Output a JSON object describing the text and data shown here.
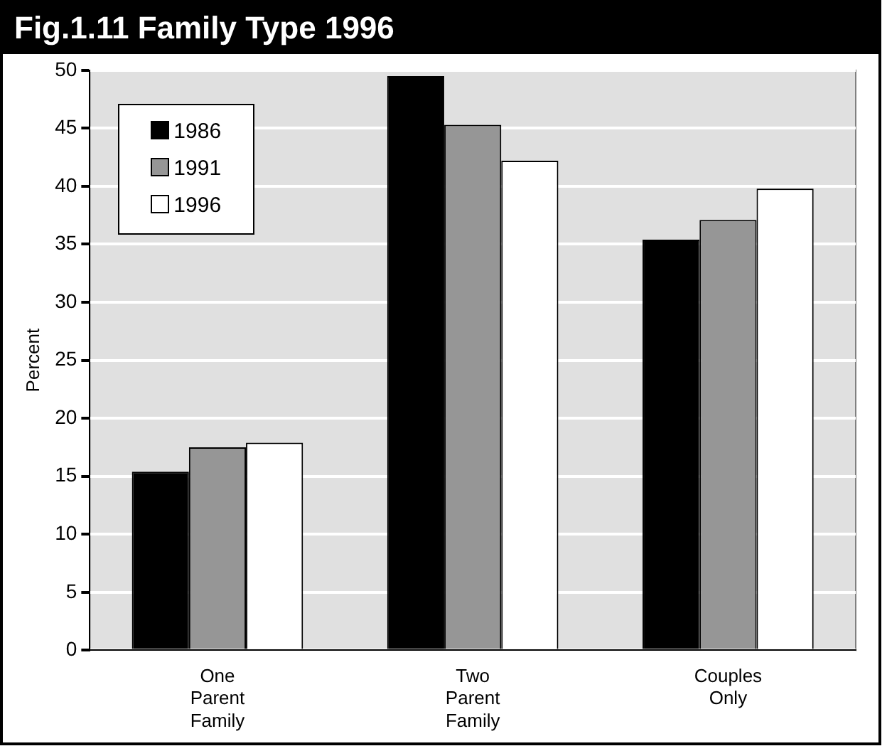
{
  "chart_data": {
    "type": "bar",
    "title": "Fig.1.11  Family Type 1996",
    "ylabel": "Percent",
    "categories": [
      "One Parent Family",
      "Two Parent Family",
      "Couples Only"
    ],
    "series": [
      {
        "name": "1986",
        "color": "#000000",
        "values": [
          15.4,
          49.5,
          35.4
        ]
      },
      {
        "name": "1991",
        "color": "#969696",
        "values": [
          17.5,
          45.3,
          37.1
        ]
      },
      {
        "name": "1996",
        "color": "#ffffff",
        "values": [
          17.9,
          42.2,
          39.8
        ]
      }
    ],
    "ylim": [
      0,
      50
    ],
    "yticks": [
      0,
      5,
      10,
      15,
      20,
      25,
      30,
      35,
      40,
      45,
      50
    ],
    "grid": "y",
    "legend": "top left"
  }
}
